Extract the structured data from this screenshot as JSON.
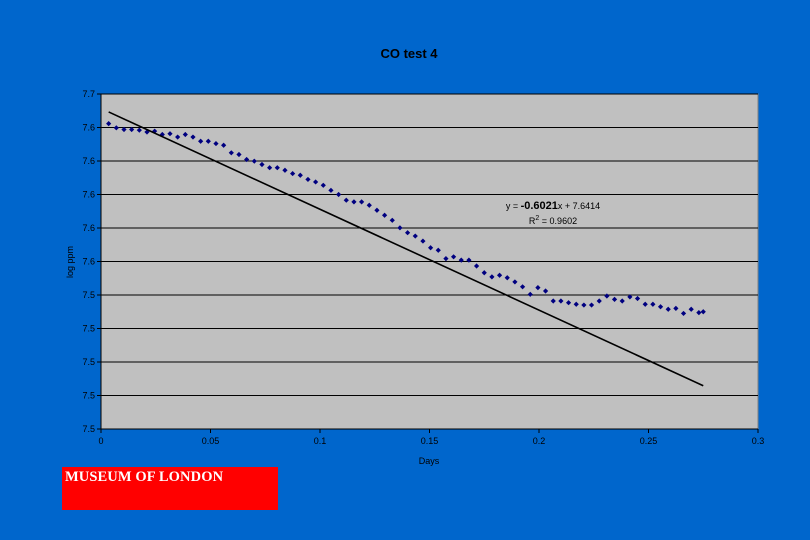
{
  "logo": {
    "text": "MUSEUM OF LONDON"
  },
  "colors": {
    "background": "#0066cc",
    "plot_area": "#c0c0c0",
    "marker": "#000080",
    "trendline": "#000000",
    "logo": "#ff0000"
  },
  "chart_data": {
    "type": "scatter",
    "title": "CO test 4",
    "xlabel": "Days",
    "ylabel": "log ppm",
    "xlim": [
      0,
      0.3
    ],
    "x_ticks": [
      0,
      0.05,
      0.1,
      0.15,
      0.2,
      0.25,
      0.3
    ],
    "x_tick_labels": [
      "0",
      "0.05",
      "0.1",
      "0.15",
      "0.2",
      "0.25",
      "0.3"
    ],
    "ylim": [
      7.45,
      7.65
    ],
    "y_ticks": [
      7.45,
      7.47,
      7.49,
      7.51,
      7.53,
      7.55,
      7.57,
      7.59,
      7.61,
      7.63,
      7.65
    ],
    "y_tick_labels": [
      "7.5",
      "7.5",
      "7.5",
      "7.5",
      "7.5",
      "7.6",
      "7.6",
      "7.6",
      "7.6",
      "7.6",
      "7.7"
    ],
    "grid": "horizontal",
    "legend": "none",
    "trendline": {
      "equation_prefix": "y = ",
      "slope_label": "-0.6021",
      "equation_suffix": "x + 7.6414",
      "r2_label": "R",
      "r2_sup": "2",
      "r2_value": " = 0.9602",
      "slope": -0.6021,
      "intercept": 7.6414,
      "x_range": [
        0.0035,
        0.275
      ]
    },
    "series": [
      {
        "values": [
          [
            0.0035,
            7.6323
          ],
          [
            0.007,
            7.6298
          ],
          [
            0.0105,
            7.6288
          ],
          [
            0.014,
            7.6288
          ],
          [
            0.0175,
            7.6284
          ],
          [
            0.021,
            7.6273
          ],
          [
            0.0245,
            7.6278
          ],
          [
            0.028,
            7.6258
          ],
          [
            0.0315,
            7.6263
          ],
          [
            0.035,
            7.6243
          ],
          [
            0.0385,
            7.6258
          ],
          [
            0.042,
            7.6243
          ],
          [
            0.0455,
            7.6218
          ],
          [
            0.049,
            7.6218
          ],
          [
            0.0525,
            7.6204
          ],
          [
            0.056,
            7.6194
          ],
          [
            0.0595,
            7.6149
          ],
          [
            0.063,
            7.6139
          ],
          [
            0.0665,
            7.6109
          ],
          [
            0.07,
            7.6099
          ],
          [
            0.0735,
            7.6079
          ],
          [
            0.077,
            7.606
          ],
          [
            0.0805,
            7.606
          ],
          [
            0.084,
            7.6045
          ],
          [
            0.0875,
            7.6025
          ],
          [
            0.091,
            7.6015
          ],
          [
            0.0945,
            7.599
          ],
          [
            0.098,
            7.5975
          ],
          [
            0.1015,
            7.5955
          ],
          [
            0.105,
            7.5925
          ],
          [
            0.1085,
            7.59
          ],
          [
            0.112,
            7.5866
          ],
          [
            0.1155,
            7.5856
          ],
          [
            0.119,
            7.5856
          ],
          [
            0.1225,
            7.5836
          ],
          [
            0.126,
            7.5806
          ],
          [
            0.1295,
            7.5776
          ],
          [
            0.133,
            7.5746
          ],
          [
            0.1365,
            7.5701
          ],
          [
            0.14,
            7.5672
          ],
          [
            0.1435,
            7.5652
          ],
          [
            0.147,
            7.5622
          ],
          [
            0.1505,
            7.5582
          ],
          [
            0.154,
            7.5567
          ],
          [
            0.1575,
            7.5517
          ],
          [
            0.161,
            7.5528
          ],
          [
            0.1645,
            7.5508
          ],
          [
            0.168,
            7.5508
          ],
          [
            0.1715,
            7.5473
          ],
          [
            0.175,
            7.5433
          ],
          [
            0.1785,
            7.5408
          ],
          [
            0.182,
            7.5418
          ],
          [
            0.1855,
            7.5403
          ],
          [
            0.189,
            7.5378
          ],
          [
            0.1925,
            7.5349
          ],
          [
            0.196,
            7.5304
          ],
          [
            0.1995,
            7.5344
          ],
          [
            0.203,
            7.5324
          ],
          [
            0.2065,
            7.5264
          ],
          [
            0.21,
            7.5264
          ],
          [
            0.2135,
            7.5254
          ],
          [
            0.217,
            7.5245
          ],
          [
            0.2205,
            7.524
          ],
          [
            0.224,
            7.524
          ],
          [
            0.2275,
            7.5264
          ],
          [
            0.231,
            7.5294
          ],
          [
            0.2345,
            7.5274
          ],
          [
            0.238,
            7.5264
          ],
          [
            0.2415,
            7.5289
          ],
          [
            0.245,
            7.5279
          ],
          [
            0.2485,
            7.5245
          ],
          [
            0.252,
            7.5245
          ],
          [
            0.2555,
            7.523
          ],
          [
            0.259,
            7.5215
          ],
          [
            0.2625,
            7.522
          ],
          [
            0.266,
            7.519
          ],
          [
            0.2695,
            7.5215
          ],
          [
            0.273,
            7.5195
          ],
          [
            0.275,
            7.52
          ]
        ]
      }
    ]
  }
}
